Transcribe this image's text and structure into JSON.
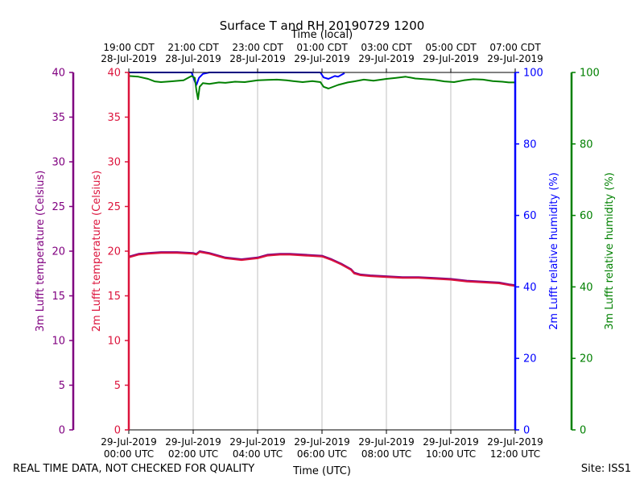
{
  "chart_data": {
    "type": "line",
    "title": "Surface T and RH 20190729 1200",
    "top_axis_label": "Time (local)",
    "xlabel": "Time (UTC)",
    "x_utc_hours": [
      0,
      2,
      4,
      6,
      8,
      10,
      12
    ],
    "xlim_hours": [
      0,
      12
    ],
    "bottom_ticks": [
      {
        "date": "29-Jul-2019",
        "time": "00:00 UTC"
      },
      {
        "date": "29-Jul-2019",
        "time": "02:00 UTC"
      },
      {
        "date": "29-Jul-2019",
        "time": "04:00 UTC"
      },
      {
        "date": "29-Jul-2019",
        "time": "06:00 UTC"
      },
      {
        "date": "29-Jul-2019",
        "time": "08:00 UTC"
      },
      {
        "date": "29-Jul-2019",
        "time": "10:00 UTC"
      },
      {
        "date": "29-Jul-2019",
        "time": "12:00 UTC"
      }
    ],
    "top_ticks": [
      {
        "time": "19:00 CDT",
        "date": "28-Jul-2019"
      },
      {
        "time": "21:00 CDT",
        "date": "28-Jul-2019"
      },
      {
        "time": "23:00 CDT",
        "date": "28-Jul-2019"
      },
      {
        "time": "01:00 CDT",
        "date": "29-Jul-2019"
      },
      {
        "time": "03:00 CDT",
        "date": "29-Jul-2019"
      },
      {
        "time": "05:00 CDT",
        "date": "29-Jul-2019"
      },
      {
        "time": "07:00 CDT",
        "date": "29-Jul-2019"
      }
    ],
    "axes": {
      "temp3m": {
        "label": "3m Lufft temperature (Celsius)",
        "ylim": [
          0,
          40
        ],
        "ticks": [
          0,
          5,
          10,
          15,
          20,
          25,
          30,
          35,
          40
        ],
        "color": "#800080"
      },
      "temp2m": {
        "label": "2m Lufft temperature (Celsius)",
        "ylim": [
          0,
          40
        ],
        "ticks": [
          0,
          5,
          10,
          15,
          20,
          25,
          30,
          35,
          40
        ],
        "color": "#dc143c"
      },
      "rh2m": {
        "label": "2m Lufft relative humidity (%)",
        "ylim": [
          0,
          100
        ],
        "ticks": [
          0,
          20,
          40,
          60,
          80,
          100
        ],
        "color": "#0000ff"
      },
      "rh3m": {
        "label": "3m Lufft relative humidity (%)",
        "ylim": [
          0,
          100
        ],
        "ticks": [
          0,
          20,
          40,
          60,
          80,
          100
        ],
        "color": "#008000"
      }
    },
    "series": [
      {
        "name": "2m Lufft relative humidity",
        "axis": "rh2m",
        "color": "#0000ff",
        "x": [
          0,
          1.95,
          2.05,
          2.1,
          2.18,
          2.3,
          2.5,
          3,
          4,
          5,
          5.95,
          6.05,
          6.2,
          6.4,
          6.5,
          6.7
        ],
        "y": [
          100,
          100,
          97.5,
          96.5,
          98.5,
          99.6,
          100,
          100,
          100,
          100,
          100,
          98.6,
          98.2,
          99,
          98.8,
          99.8
        ]
      },
      {
        "name": "3m Lufft relative humidity",
        "axis": "rh3m",
        "color": "#008000",
        "x": [
          0,
          0.3,
          0.6,
          0.8,
          1,
          1.3,
          1.7,
          1.95,
          2.05,
          2.1,
          2.15,
          2.2,
          2.3,
          2.5,
          2.8,
          3,
          3.3,
          3.6,
          4,
          4.3,
          4.6,
          4.9,
          5.1,
          5.4,
          5.7,
          5.95,
          6.05,
          6.2,
          6.5,
          6.8,
          7,
          7.3,
          7.6,
          8,
          8.3,
          8.6,
          8.9,
          9.2,
          9.5,
          9.8,
          10.1,
          10.4,
          10.7,
          11,
          11.3,
          11.6,
          11.8,
          12
        ],
        "y": [
          99,
          98.8,
          98.2,
          97.5,
          97.3,
          97.5,
          97.8,
          99,
          98.5,
          95,
          92.5,
          96,
          97,
          96.8,
          97.2,
          97.1,
          97.4,
          97.3,
          97.8,
          97.9,
          98,
          97.8,
          97.6,
          97.3,
          97.6,
          97.3,
          96,
          95.5,
          96.5,
          97.2,
          97.5,
          98,
          97.7,
          98.2,
          98.5,
          98.8,
          98.3,
          98.1,
          97.9,
          97.5,
          97.3,
          97.8,
          98.1,
          98,
          97.6,
          97.4,
          97.2,
          97.2
        ]
      },
      {
        "name": "3m Lufft temperature",
        "axis": "temp3m",
        "color": "#800080",
        "x": [
          0,
          0.3,
          0.6,
          1,
          1.5,
          2,
          2.1,
          2.2,
          2.5,
          3,
          3.5,
          4,
          4.3,
          4.7,
          5,
          5.5,
          6,
          6.3,
          6.6,
          6.9,
          7,
          7.2,
          7.5,
          8,
          8.5,
          9,
          9.5,
          10,
          10.5,
          11,
          11.5,
          11.8,
          12
        ],
        "y": [
          19.4,
          19.7,
          19.8,
          19.9,
          19.9,
          19.8,
          19.7,
          20,
          19.8,
          19.3,
          19.1,
          19.3,
          19.6,
          19.7,
          19.7,
          19.6,
          19.5,
          19.1,
          18.6,
          18.0,
          17.6,
          17.4,
          17.3,
          17.2,
          17.1,
          17.1,
          17.0,
          16.9,
          16.7,
          16.6,
          16.5,
          16.3,
          16.2
        ]
      },
      {
        "name": "2m Lufft temperature",
        "axis": "temp2m",
        "color": "#dc143c",
        "x": [
          0,
          0.3,
          0.6,
          1,
          1.5,
          2,
          2.1,
          2.2,
          2.5,
          3,
          3.5,
          4,
          4.3,
          4.7,
          5,
          5.5,
          6,
          6.3,
          6.6,
          6.9,
          7,
          7.2,
          7.5,
          8,
          8.5,
          9,
          9.5,
          10,
          10.5,
          11,
          11.5,
          11.8,
          12
        ],
        "y": [
          19.3,
          19.6,
          19.7,
          19.8,
          19.8,
          19.7,
          19.6,
          19.9,
          19.7,
          19.2,
          19.0,
          19.2,
          19.5,
          19.6,
          19.6,
          19.5,
          19.4,
          19.0,
          18.5,
          17.9,
          17.5,
          17.3,
          17.2,
          17.1,
          17.0,
          17.0,
          16.9,
          16.8,
          16.6,
          16.5,
          16.4,
          16.2,
          16.1
        ]
      }
    ]
  },
  "footer": {
    "left": "REAL TIME DATA, NOT CHECKED FOR QUALITY",
    "right": "Site: ISS1"
  }
}
